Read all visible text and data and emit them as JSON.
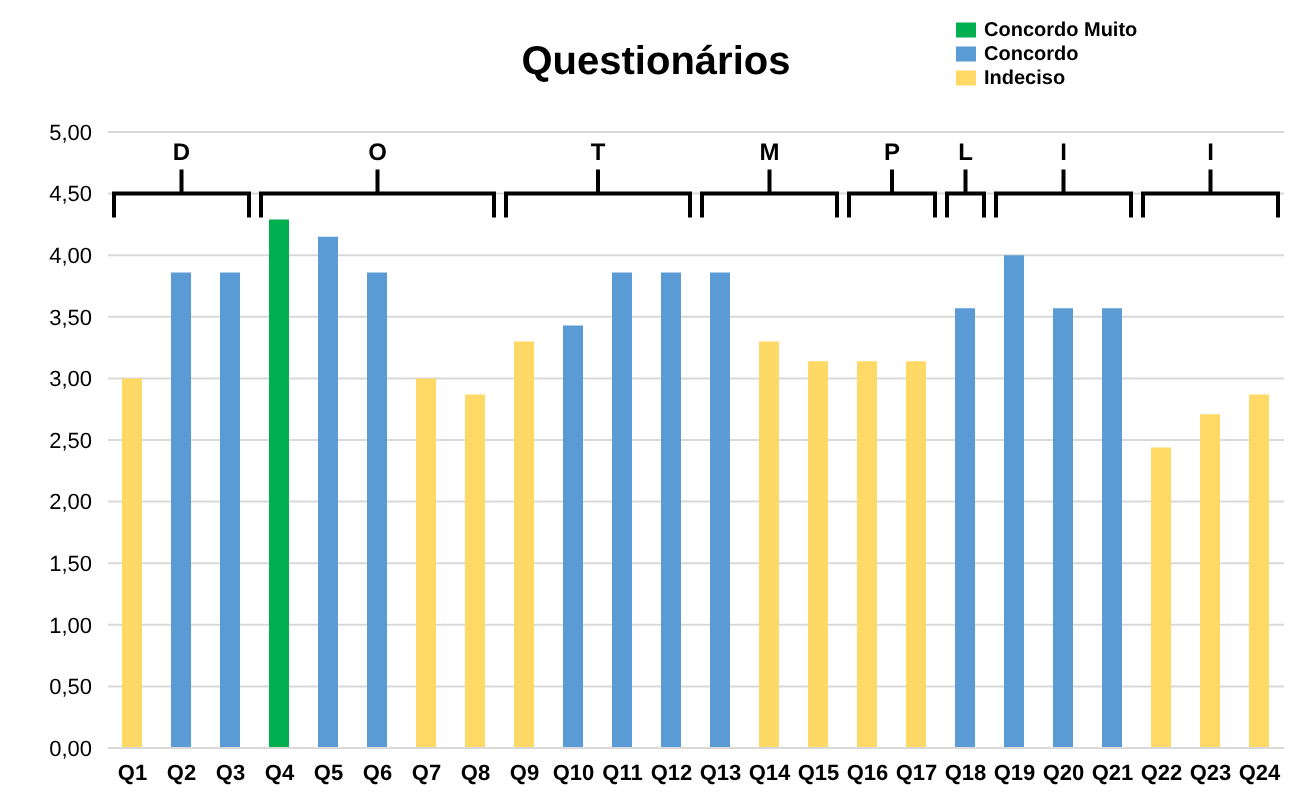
{
  "chart_data": {
    "type": "bar",
    "title": "Questionários",
    "stacked": true,
    "grid": "y",
    "legend": "top right",
    "categories": [
      "Q1",
      "Q2",
      "Q3",
      "Q4",
      "Q5",
      "Q6",
      "Q7",
      "Q8",
      "Q9",
      "Q10",
      "Q11",
      "Q12",
      "Q13",
      "Q14",
      "Q15",
      "Q16",
      "Q17",
      "Q18",
      "Q19",
      "Q20",
      "Q21",
      "Q22",
      "Q23",
      "Q24"
    ],
    "series": [
      {
        "name": "Concordo Muito",
        "color": "#00b050",
        "values": [
          null,
          null,
          null,
          4.29,
          null,
          null,
          null,
          null,
          null,
          null,
          null,
          null,
          null,
          null,
          null,
          null,
          null,
          null,
          null,
          null,
          null,
          null,
          null,
          null
        ]
      },
      {
        "name": "Concordo",
        "color": "#5b9bd5",
        "values": [
          null,
          3.86,
          3.86,
          null,
          4.15,
          3.86,
          null,
          null,
          null,
          3.43,
          3.86,
          3.86,
          3.86,
          null,
          null,
          null,
          null,
          3.57,
          4.0,
          3.57,
          3.57,
          null,
          null,
          null
        ]
      },
      {
        "name": "Indeciso",
        "color": "#ffd966",
        "values": [
          3.0,
          null,
          null,
          null,
          null,
          null,
          3.0,
          2.87,
          3.3,
          null,
          null,
          null,
          null,
          3.3,
          3.14,
          3.14,
          3.14,
          null,
          null,
          null,
          null,
          2.44,
          2.71,
          2.87
        ]
      }
    ],
    "ylim": [
      0,
      5
    ],
    "yticks": [
      {
        "value": 0,
        "label": "0,00"
      },
      {
        "value": 0.5,
        "label": "0,50"
      },
      {
        "value": 1,
        "label": "1,00"
      },
      {
        "value": 1.5,
        "label": "1,50"
      },
      {
        "value": 2,
        "label": "2,00"
      },
      {
        "value": 2.5,
        "label": "2,50"
      },
      {
        "value": 3,
        "label": "3,00"
      },
      {
        "value": 3.5,
        "label": "3,50"
      },
      {
        "value": 4,
        "label": "4,00"
      },
      {
        "value": 4.5,
        "label": "4,50"
      },
      {
        "value": 5,
        "label": "5,00"
      }
    ],
    "annotations": [
      "D",
      "O",
      "T",
      "M",
      "P",
      "L",
      "I",
      "I"
    ]
  }
}
